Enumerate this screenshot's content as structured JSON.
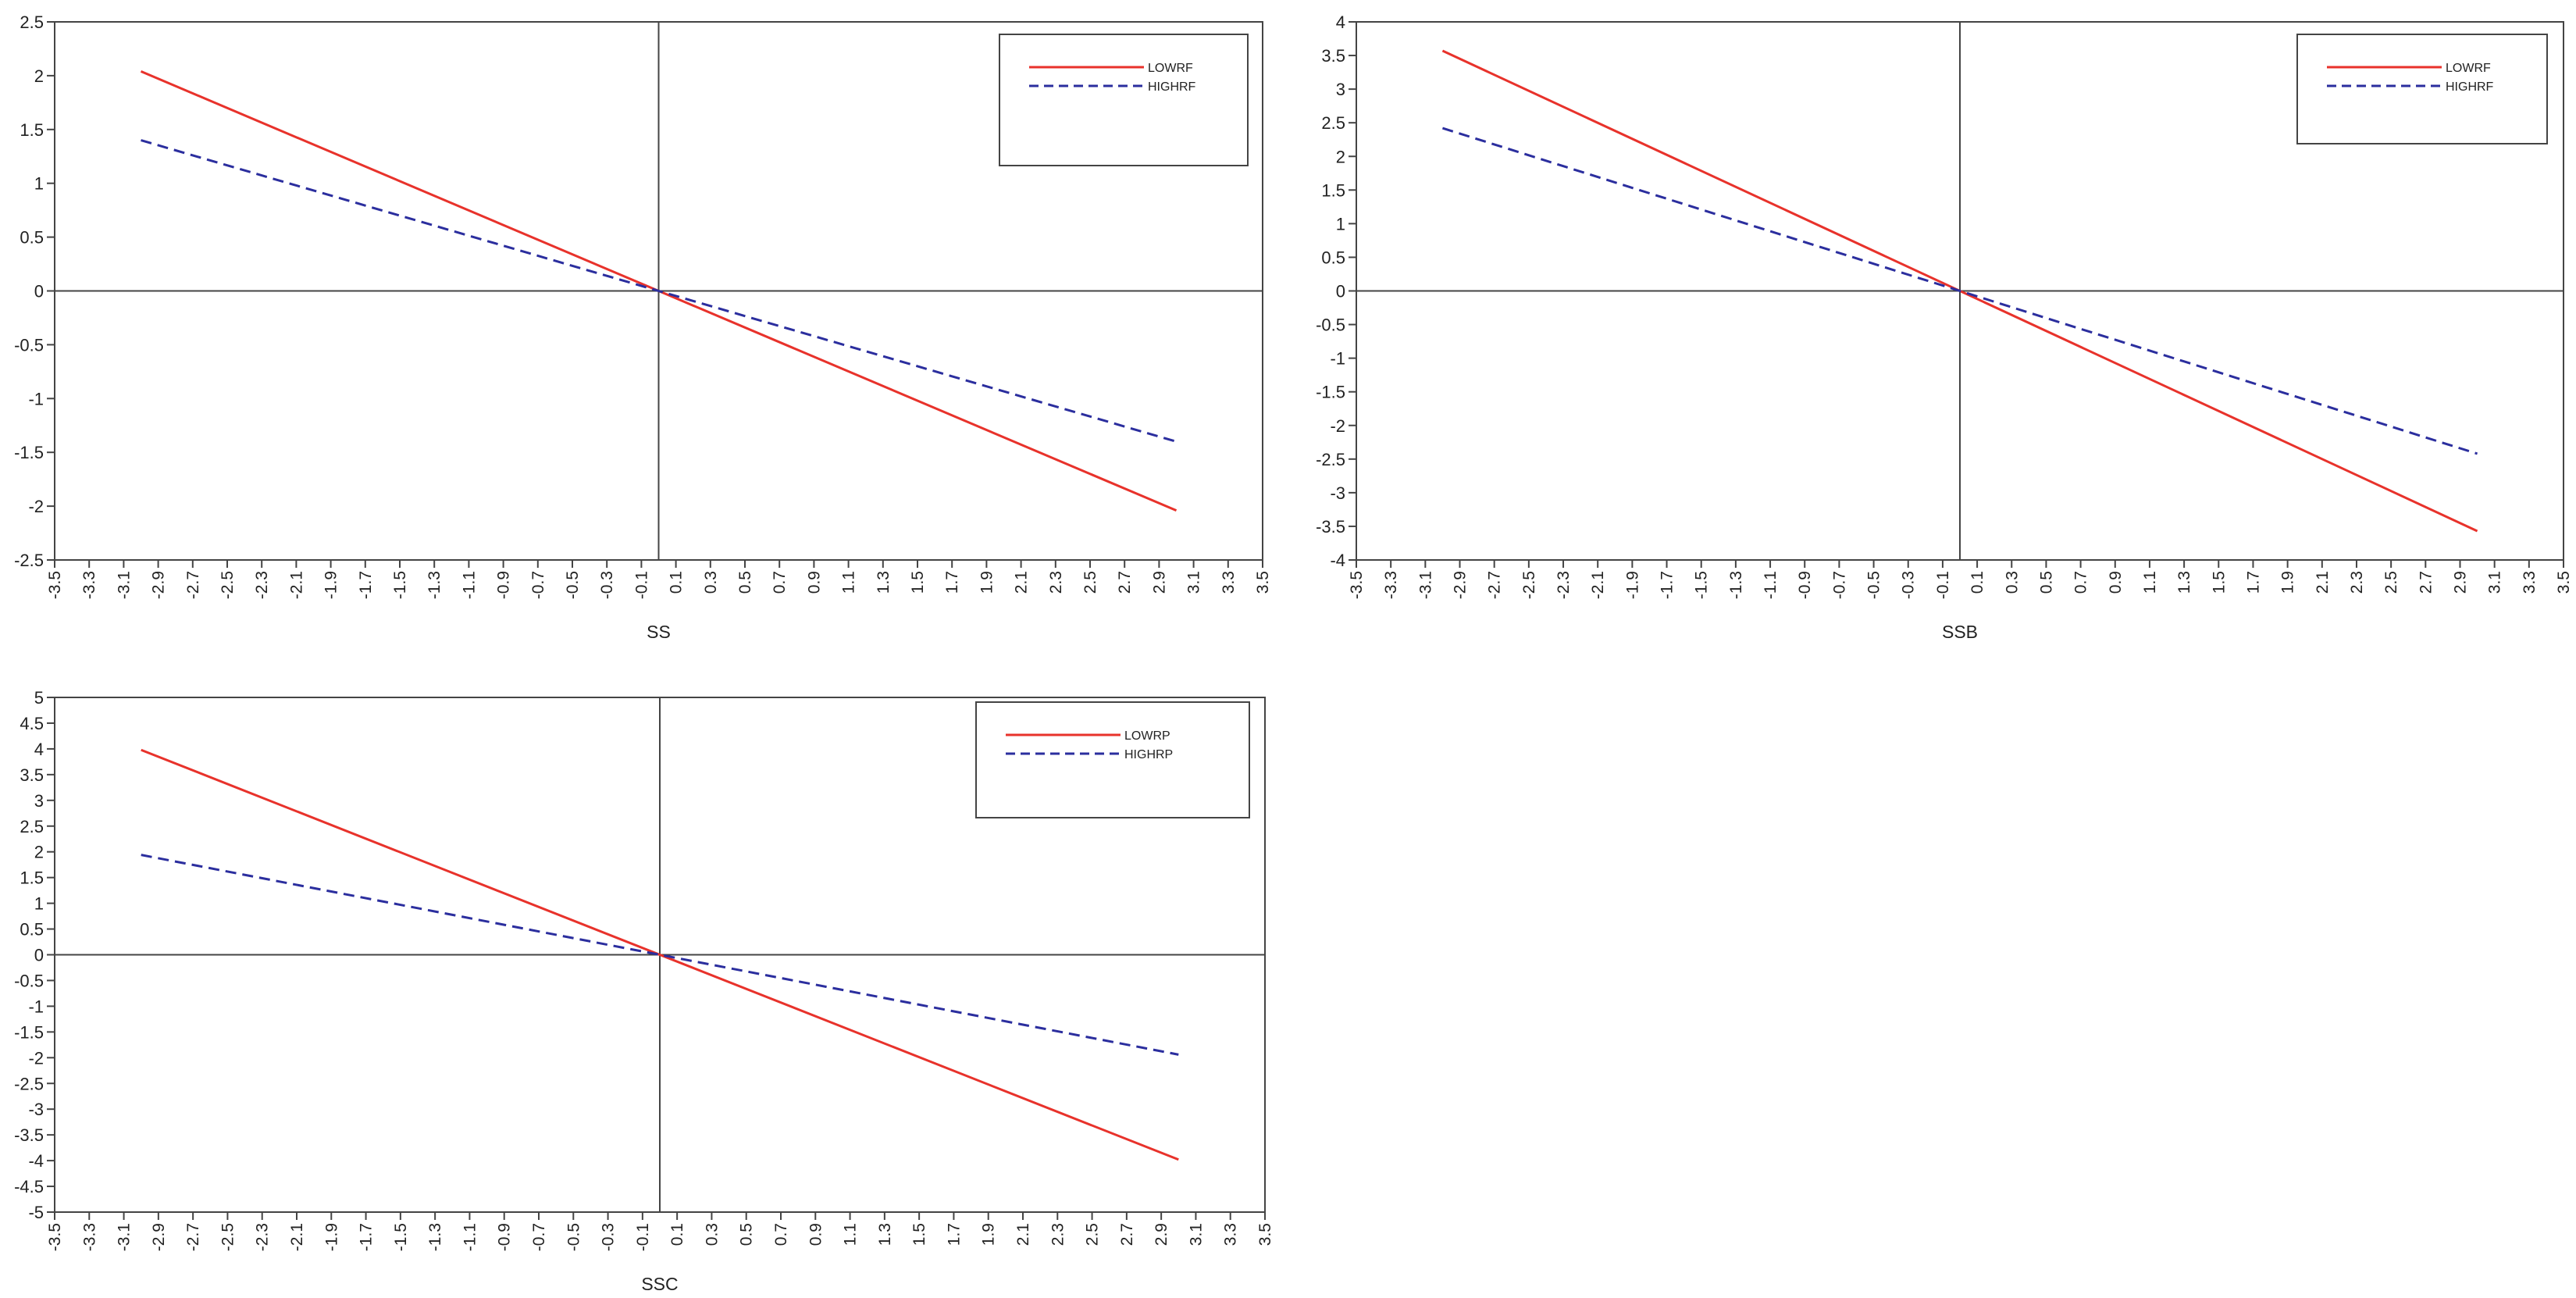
{
  "chart_data": [
    {
      "type": "line",
      "title": "",
      "xlabel": "SS",
      "ylabel": "",
      "xlim": [
        -3.5,
        3.5
      ],
      "ylim": [
        -2.5,
        2.5
      ],
      "x_ticks": [
        "-3.5",
        "-3.3",
        "-3.1",
        "-2.9",
        "-2.7",
        "-2.5",
        "-2.3",
        "-2.1",
        "-1.9",
        "-1.7",
        "-1.5",
        "-1.3",
        "-1.1",
        "-0.9",
        "-0.7",
        "-0.5",
        "-0.3",
        "-0.1",
        "0.1",
        "0.3",
        "0.5",
        "0.7",
        "0.9",
        "1.1",
        "1.3",
        "1.5",
        "1.7",
        "1.9",
        "2.1",
        "2.3",
        "2.5",
        "2.7",
        "2.9",
        "3.1",
        "3.3",
        "3.5"
      ],
      "y_ticks": [
        "2.5",
        "2",
        "1.5",
        "1",
        "0.5",
        "0",
        "-0.5",
        "-1",
        "-1.5",
        "-2",
        "-2.5"
      ],
      "legend_position": "top-right",
      "series": [
        {
          "name": "LOWRF",
          "color": "#e8322b",
          "style": "solid",
          "x": [
            -3.0,
            3.0
          ],
          "y": [
            2.04,
            -2.04
          ]
        },
        {
          "name": "HIGHRF",
          "color": "#2b2e9e",
          "style": "dashed",
          "x": [
            -3.0,
            3.0
          ],
          "y": [
            1.4,
            -1.4
          ]
        }
      ]
    },
    {
      "type": "line",
      "title": "",
      "xlabel": "SSB",
      "ylabel": "",
      "xlim": [
        -3.5,
        3.5
      ],
      "ylim": [
        -4,
        4
      ],
      "x_ticks": [
        "-3.5",
        "-3.3",
        "-3.1",
        "-2.9",
        "-2.7",
        "-2.5",
        "-2.3",
        "-2.1",
        "-1.9",
        "-1.7",
        "-1.5",
        "-1.3",
        "-1.1",
        "-0.9",
        "-0.7",
        "-0.5",
        "-0.3",
        "-0.1",
        "0.1",
        "0.3",
        "0.5",
        "0.7",
        "0.9",
        "1.1",
        "1.3",
        "1.5",
        "1.7",
        "1.9",
        "2.1",
        "2.3",
        "2.5",
        "2.7",
        "2.9",
        "3.1",
        "3.3",
        "3.5"
      ],
      "y_ticks": [
        "4",
        "3.5",
        "3",
        "2.5",
        "2",
        "1.5",
        "1",
        "0.5",
        "0",
        "-0.5",
        "-1",
        "-1.5",
        "-2",
        "-2.5",
        "-3",
        "-3.5",
        "-4"
      ],
      "legend_position": "top-right",
      "series": [
        {
          "name": "LOWRF",
          "color": "#e8322b",
          "style": "solid",
          "x": [
            -3.0,
            3.0
          ],
          "y": [
            3.57,
            -3.57
          ]
        },
        {
          "name": "HIGHRF",
          "color": "#2b2e9e",
          "style": "dashed",
          "x": [
            -3.0,
            3.0
          ],
          "y": [
            2.42,
            -2.42
          ]
        }
      ]
    },
    {
      "type": "line",
      "title": "",
      "xlabel": "SSC",
      "ylabel": "",
      "xlim": [
        -3.5,
        3.5
      ],
      "ylim": [
        -5,
        5
      ],
      "x_ticks": [
        "-3.5",
        "-3.3",
        "-3.1",
        "-2.9",
        "-2.7",
        "-2.5",
        "-2.3",
        "-2.1",
        "-1.9",
        "-1.7",
        "-1.5",
        "-1.3",
        "-1.1",
        "-0.9",
        "-0.7",
        "-0.5",
        "-0.3",
        "-0.1",
        "0.1",
        "0.3",
        "0.5",
        "0.7",
        "0.9",
        "1.1",
        "1.3",
        "1.5",
        "1.7",
        "1.9",
        "2.1",
        "2.3",
        "2.5",
        "2.7",
        "2.9",
        "3.1",
        "3.3",
        "3.5"
      ],
      "y_ticks": [
        "5",
        "4.5",
        "4",
        "3.5",
        "3",
        "2.5",
        "2",
        "1.5",
        "1",
        "0.5",
        "0",
        "-0.5",
        "-1",
        "-1.5",
        "-2",
        "-2.5",
        "-3",
        "-3.5",
        "-4",
        "-4.5",
        "-5"
      ],
      "legend_position": "top-right",
      "series": [
        {
          "name": "LOWRP",
          "color": "#e8322b",
          "style": "solid",
          "x": [
            -3.0,
            3.0
          ],
          "y": [
            3.98,
            -3.98
          ]
        },
        {
          "name": "HIGHRP",
          "color": "#2b2e9e",
          "style": "dashed",
          "x": [
            -3.0,
            3.0
          ],
          "y": [
            1.94,
            -1.94
          ]
        }
      ]
    }
  ]
}
